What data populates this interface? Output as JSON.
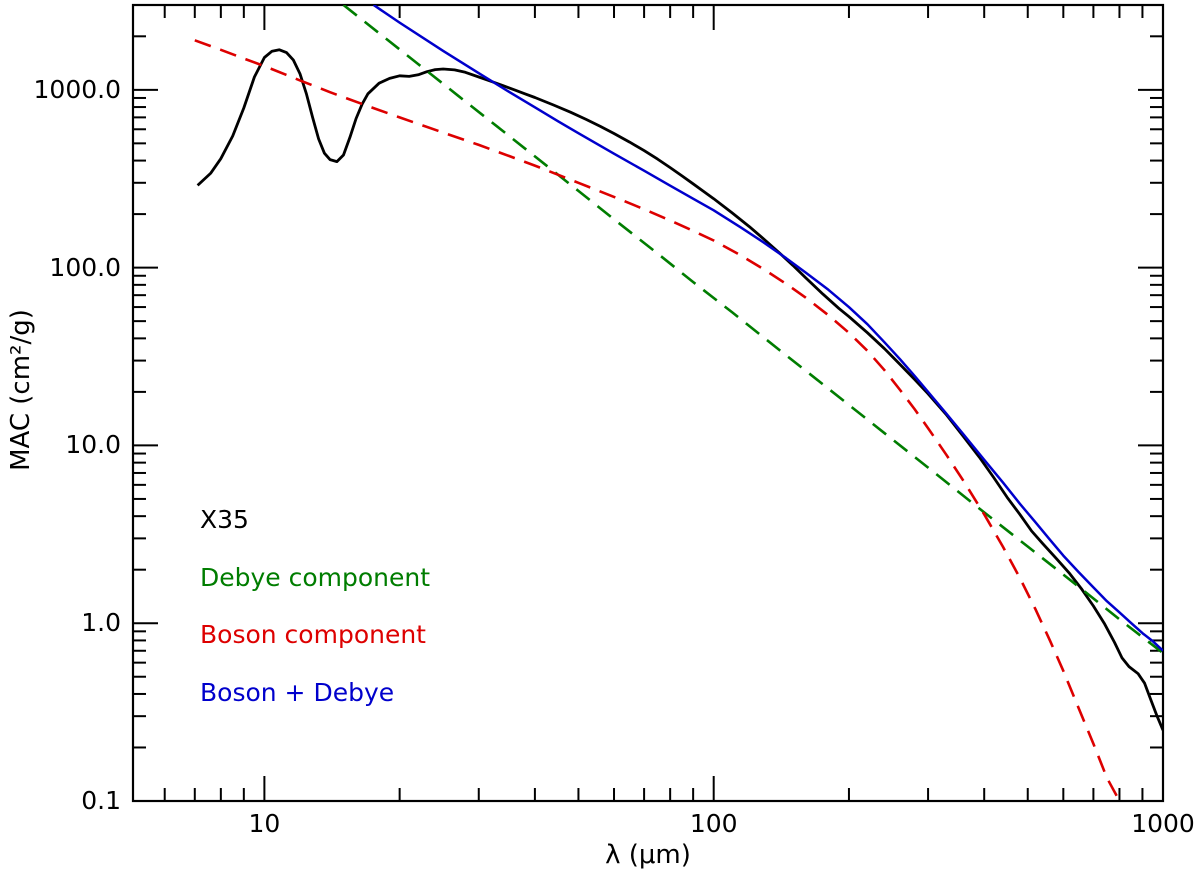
{
  "chart_data": {
    "type": "line",
    "title": "",
    "xlabel": "λ (μm)",
    "ylabel": "MAC (cm²/g)",
    "x_scale": "log",
    "y_scale": "log",
    "xlim": [
      5.1,
      1000
    ],
    "ylim": [
      0.1,
      3000
    ],
    "grid": false,
    "x_ticks": {
      "major": [
        {
          "value": 10,
          "label": "10"
        },
        {
          "value": 100,
          "label": "100"
        },
        {
          "value": 1000,
          "label": "1000"
        }
      ],
      "minor": [
        6,
        7,
        8,
        9,
        20,
        30,
        40,
        50,
        60,
        70,
        80,
        90,
        200,
        300,
        400,
        500,
        600,
        700,
        800,
        900
      ]
    },
    "y_ticks": {
      "major": [
        {
          "value": 1000,
          "label": "1000.0"
        },
        {
          "value": 100,
          "label": "100.0"
        },
        {
          "value": 10,
          "label": "10.0"
        },
        {
          "value": 1,
          "label": "1.0"
        },
        {
          "value": 0.1,
          "label": "0.1"
        }
      ],
      "minor": [
        0.2,
        0.3,
        0.4,
        0.5,
        0.6,
        0.7,
        0.8,
        0.9,
        2,
        3,
        4,
        5,
        6,
        7,
        8,
        9,
        20,
        30,
        40,
        50,
        60,
        70,
        80,
        90,
        200,
        300,
        400,
        500,
        600,
        700,
        800,
        900,
        2000
      ]
    },
    "series": [
      {
        "name": "X35",
        "color": "#000000",
        "style": "solid",
        "width": 2.8,
        "points": [
          [
            7.1,
            290
          ],
          [
            7.6,
            340
          ],
          [
            8,
            410
          ],
          [
            8.5,
            550
          ],
          [
            9,
            790
          ],
          [
            9.5,
            1180
          ],
          [
            10,
            1520
          ],
          [
            10.4,
            1650
          ],
          [
            10.8,
            1680
          ],
          [
            11.2,
            1620
          ],
          [
            11.6,
            1470
          ],
          [
            12,
            1230
          ],
          [
            12.4,
            950
          ],
          [
            12.8,
            700
          ],
          [
            13.2,
            530
          ],
          [
            13.6,
            440
          ],
          [
            14,
            405
          ],
          [
            14.5,
            395
          ],
          [
            15,
            430
          ],
          [
            15.5,
            540
          ],
          [
            16,
            690
          ],
          [
            16.5,
            830
          ],
          [
            17,
            950
          ],
          [
            18,
            1090
          ],
          [
            19,
            1160
          ],
          [
            20,
            1200
          ],
          [
            21,
            1190
          ],
          [
            22,
            1215
          ],
          [
            23,
            1265
          ],
          [
            24,
            1300
          ],
          [
            25,
            1310
          ],
          [
            26.5,
            1295
          ],
          [
            28,
            1255
          ],
          [
            30,
            1180
          ],
          [
            32,
            1115
          ],
          [
            34,
            1055
          ],
          [
            36,
            1000
          ],
          [
            38,
            950
          ],
          [
            40,
            905
          ],
          [
            44,
            822
          ],
          [
            48,
            748
          ],
          [
            52,
            682
          ],
          [
            56,
            622
          ],
          [
            60,
            568
          ],
          [
            65,
            508
          ],
          [
            70,
            455
          ],
          [
            75,
            408
          ],
          [
            80,
            365
          ],
          [
            85,
            328
          ],
          [
            90,
            296
          ],
          [
            95,
            268
          ],
          [
            100,
            244
          ],
          [
            110,
            203
          ],
          [
            120,
            170
          ],
          [
            130,
            143
          ],
          [
            140,
            121
          ],
          [
            150,
            103
          ],
          [
            160,
            88
          ],
          [
            175,
            71
          ],
          [
            190,
            59
          ],
          [
            200,
            53
          ],
          [
            220,
            43
          ],
          [
            240,
            35
          ],
          [
            260,
            28.5
          ],
          [
            280,
            23.5
          ],
          [
            300,
            19.5
          ],
          [
            330,
            14.8
          ],
          [
            360,
            11.2
          ],
          [
            390,
            8.6
          ],
          [
            420,
            6.6
          ],
          [
            450,
            5.1
          ],
          [
            480,
            4.1
          ],
          [
            510,
            3.3
          ],
          [
            540,
            2.8
          ],
          [
            580,
            2.3
          ],
          [
            620,
            1.9
          ],
          [
            660,
            1.55
          ],
          [
            700,
            1.25
          ],
          [
            740,
            1.0
          ],
          [
            780,
            0.78
          ],
          [
            810,
            0.64
          ],
          [
            840,
            0.57
          ],
          [
            880,
            0.52
          ],
          [
            910,
            0.46
          ],
          [
            940,
            0.37
          ],
          [
            970,
            0.3
          ],
          [
            1000,
            0.25
          ]
        ]
      },
      {
        "name": "Debye component",
        "color": "#007d00",
        "style": "dashed",
        "width": 2.6,
        "points": [
          [
            15,
            3000
          ],
          [
            18,
            2083
          ],
          [
            22,
            1395
          ],
          [
            27,
            926
          ],
          [
            33,
            620
          ],
          [
            40,
            422
          ],
          [
            50,
            270
          ],
          [
            60,
            187
          ],
          [
            75,
            120
          ],
          [
            90,
            83
          ],
          [
            110,
            56
          ],
          [
            140,
            34.4
          ],
          [
            170,
            23.4
          ],
          [
            200,
            16.9
          ],
          [
            250,
            10.8
          ],
          [
            300,
            7.5
          ],
          [
            400,
            4.2
          ],
          [
            500,
            2.7
          ],
          [
            650,
            1.6
          ],
          [
            800,
            1.05
          ],
          [
            1000,
            0.68
          ]
        ]
      },
      {
        "name": "Boson component",
        "color": "#dd0000",
        "style": "dashed",
        "width": 2.6,
        "points": [
          [
            7,
            1900
          ],
          [
            8,
            1680
          ],
          [
            9,
            1500
          ],
          [
            10,
            1360
          ],
          [
            12,
            1130
          ],
          [
            14,
            970
          ],
          [
            17,
            810
          ],
          [
            20,
            700
          ],
          [
            25,
            575
          ],
          [
            30,
            490
          ],
          [
            35,
            425
          ],
          [
            40,
            375
          ],
          [
            45,
            333
          ],
          [
            50,
            300
          ],
          [
            60,
            250
          ],
          [
            70,
            213
          ],
          [
            80,
            184
          ],
          [
            90,
            161
          ],
          [
            100,
            142
          ],
          [
            115,
            117
          ],
          [
            130,
            97
          ],
          [
            145,
            81
          ],
          [
            160,
            68
          ],
          [
            180,
            54
          ],
          [
            200,
            43
          ],
          [
            220,
            34
          ],
          [
            240,
            26.5
          ],
          [
            260,
            20.5
          ],
          [
            280,
            16
          ],
          [
            300,
            12.5
          ],
          [
            330,
            8.8
          ],
          [
            360,
            6.3
          ],
          [
            400,
            4.1
          ],
          [
            440,
            2.7
          ],
          [
            480,
            1.8
          ],
          [
            520,
            1.2
          ],
          [
            560,
            0.8
          ],
          [
            600,
            0.54
          ],
          [
            650,
            0.33
          ],
          [
            700,
            0.21
          ],
          [
            750,
            0.135
          ],
          [
            800,
            0.1
          ]
        ]
      },
      {
        "name": "Boson + Debye",
        "color": "#0000cc",
        "style": "solid",
        "width": 2.5,
        "points": [
          [
            17.5,
            3000
          ],
          [
            20,
            2390
          ],
          [
            25,
            1655
          ],
          [
            30,
            1240
          ],
          [
            35,
            976
          ],
          [
            40,
            797
          ],
          [
            45,
            666
          ],
          [
            50,
            570
          ],
          [
            60,
            437
          ],
          [
            70,
            351
          ],
          [
            80,
            289
          ],
          [
            90,
            244
          ],
          [
            100,
            210
          ],
          [
            115,
            168
          ],
          [
            130,
            137
          ],
          [
            145,
            113
          ],
          [
            160,
            94
          ],
          [
            180,
            75
          ],
          [
            200,
            60
          ],
          [
            220,
            48
          ],
          [
            240,
            38
          ],
          [
            260,
            30.5
          ],
          [
            280,
            24.6
          ],
          [
            300,
            20
          ],
          [
            330,
            15
          ],
          [
            360,
            11.5
          ],
          [
            400,
            8.3
          ],
          [
            440,
            6.2
          ],
          [
            480,
            4.7
          ],
          [
            520,
            3.7
          ],
          [
            560,
            2.95
          ],
          [
            600,
            2.4
          ],
          [
            650,
            1.93
          ],
          [
            700,
            1.59
          ],
          [
            750,
            1.33
          ],
          [
            800,
            1.15
          ],
          [
            850,
            1.0
          ],
          [
            900,
            0.88
          ],
          [
            950,
            0.79
          ],
          [
            1000,
            0.7
          ]
        ]
      }
    ],
    "legend": {
      "position": "inside-lower-left",
      "items": [
        {
          "label": "X35",
          "color": "#000000"
        },
        {
          "label": "Debye component",
          "color": "#007d00"
        },
        {
          "label": "Boson component",
          "color": "#dd0000"
        },
        {
          "label": "Boson + Debye",
          "color": "#0000cc"
        }
      ]
    }
  }
}
